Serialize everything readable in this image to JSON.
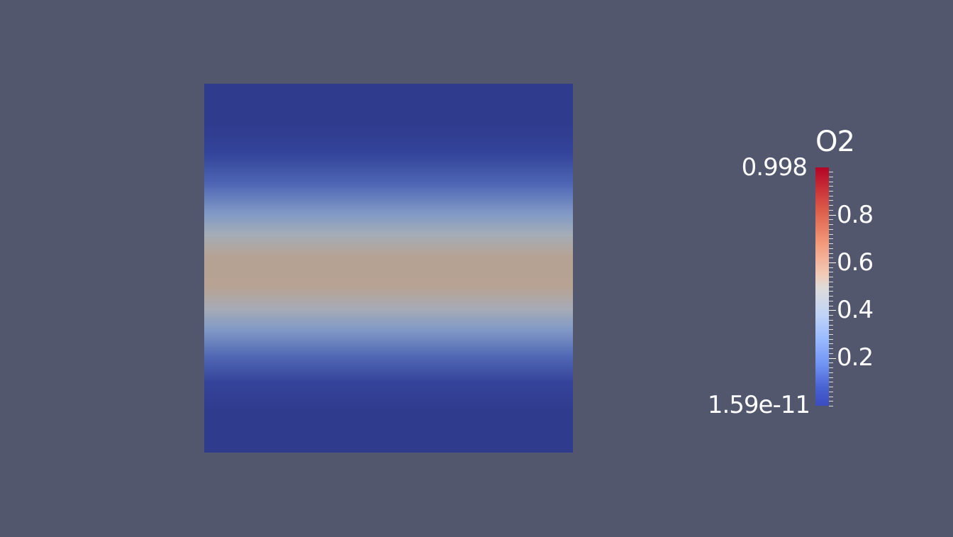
{
  "scalar_bar": {
    "title": "O2",
    "max_label": "0.998",
    "min_label": "1.59e-11",
    "tick_labels": [
      "0.8",
      "0.6",
      "0.4",
      "0.2"
    ],
    "range": [
      1.59e-11,
      0.998
    ],
    "colormap": "Cool to Warm"
  },
  "colors": {
    "background": "#52576e",
    "low": "#3b4cc0",
    "mid": "#dddcdc",
    "high": "#b40426",
    "label": "#ffffff"
  }
}
